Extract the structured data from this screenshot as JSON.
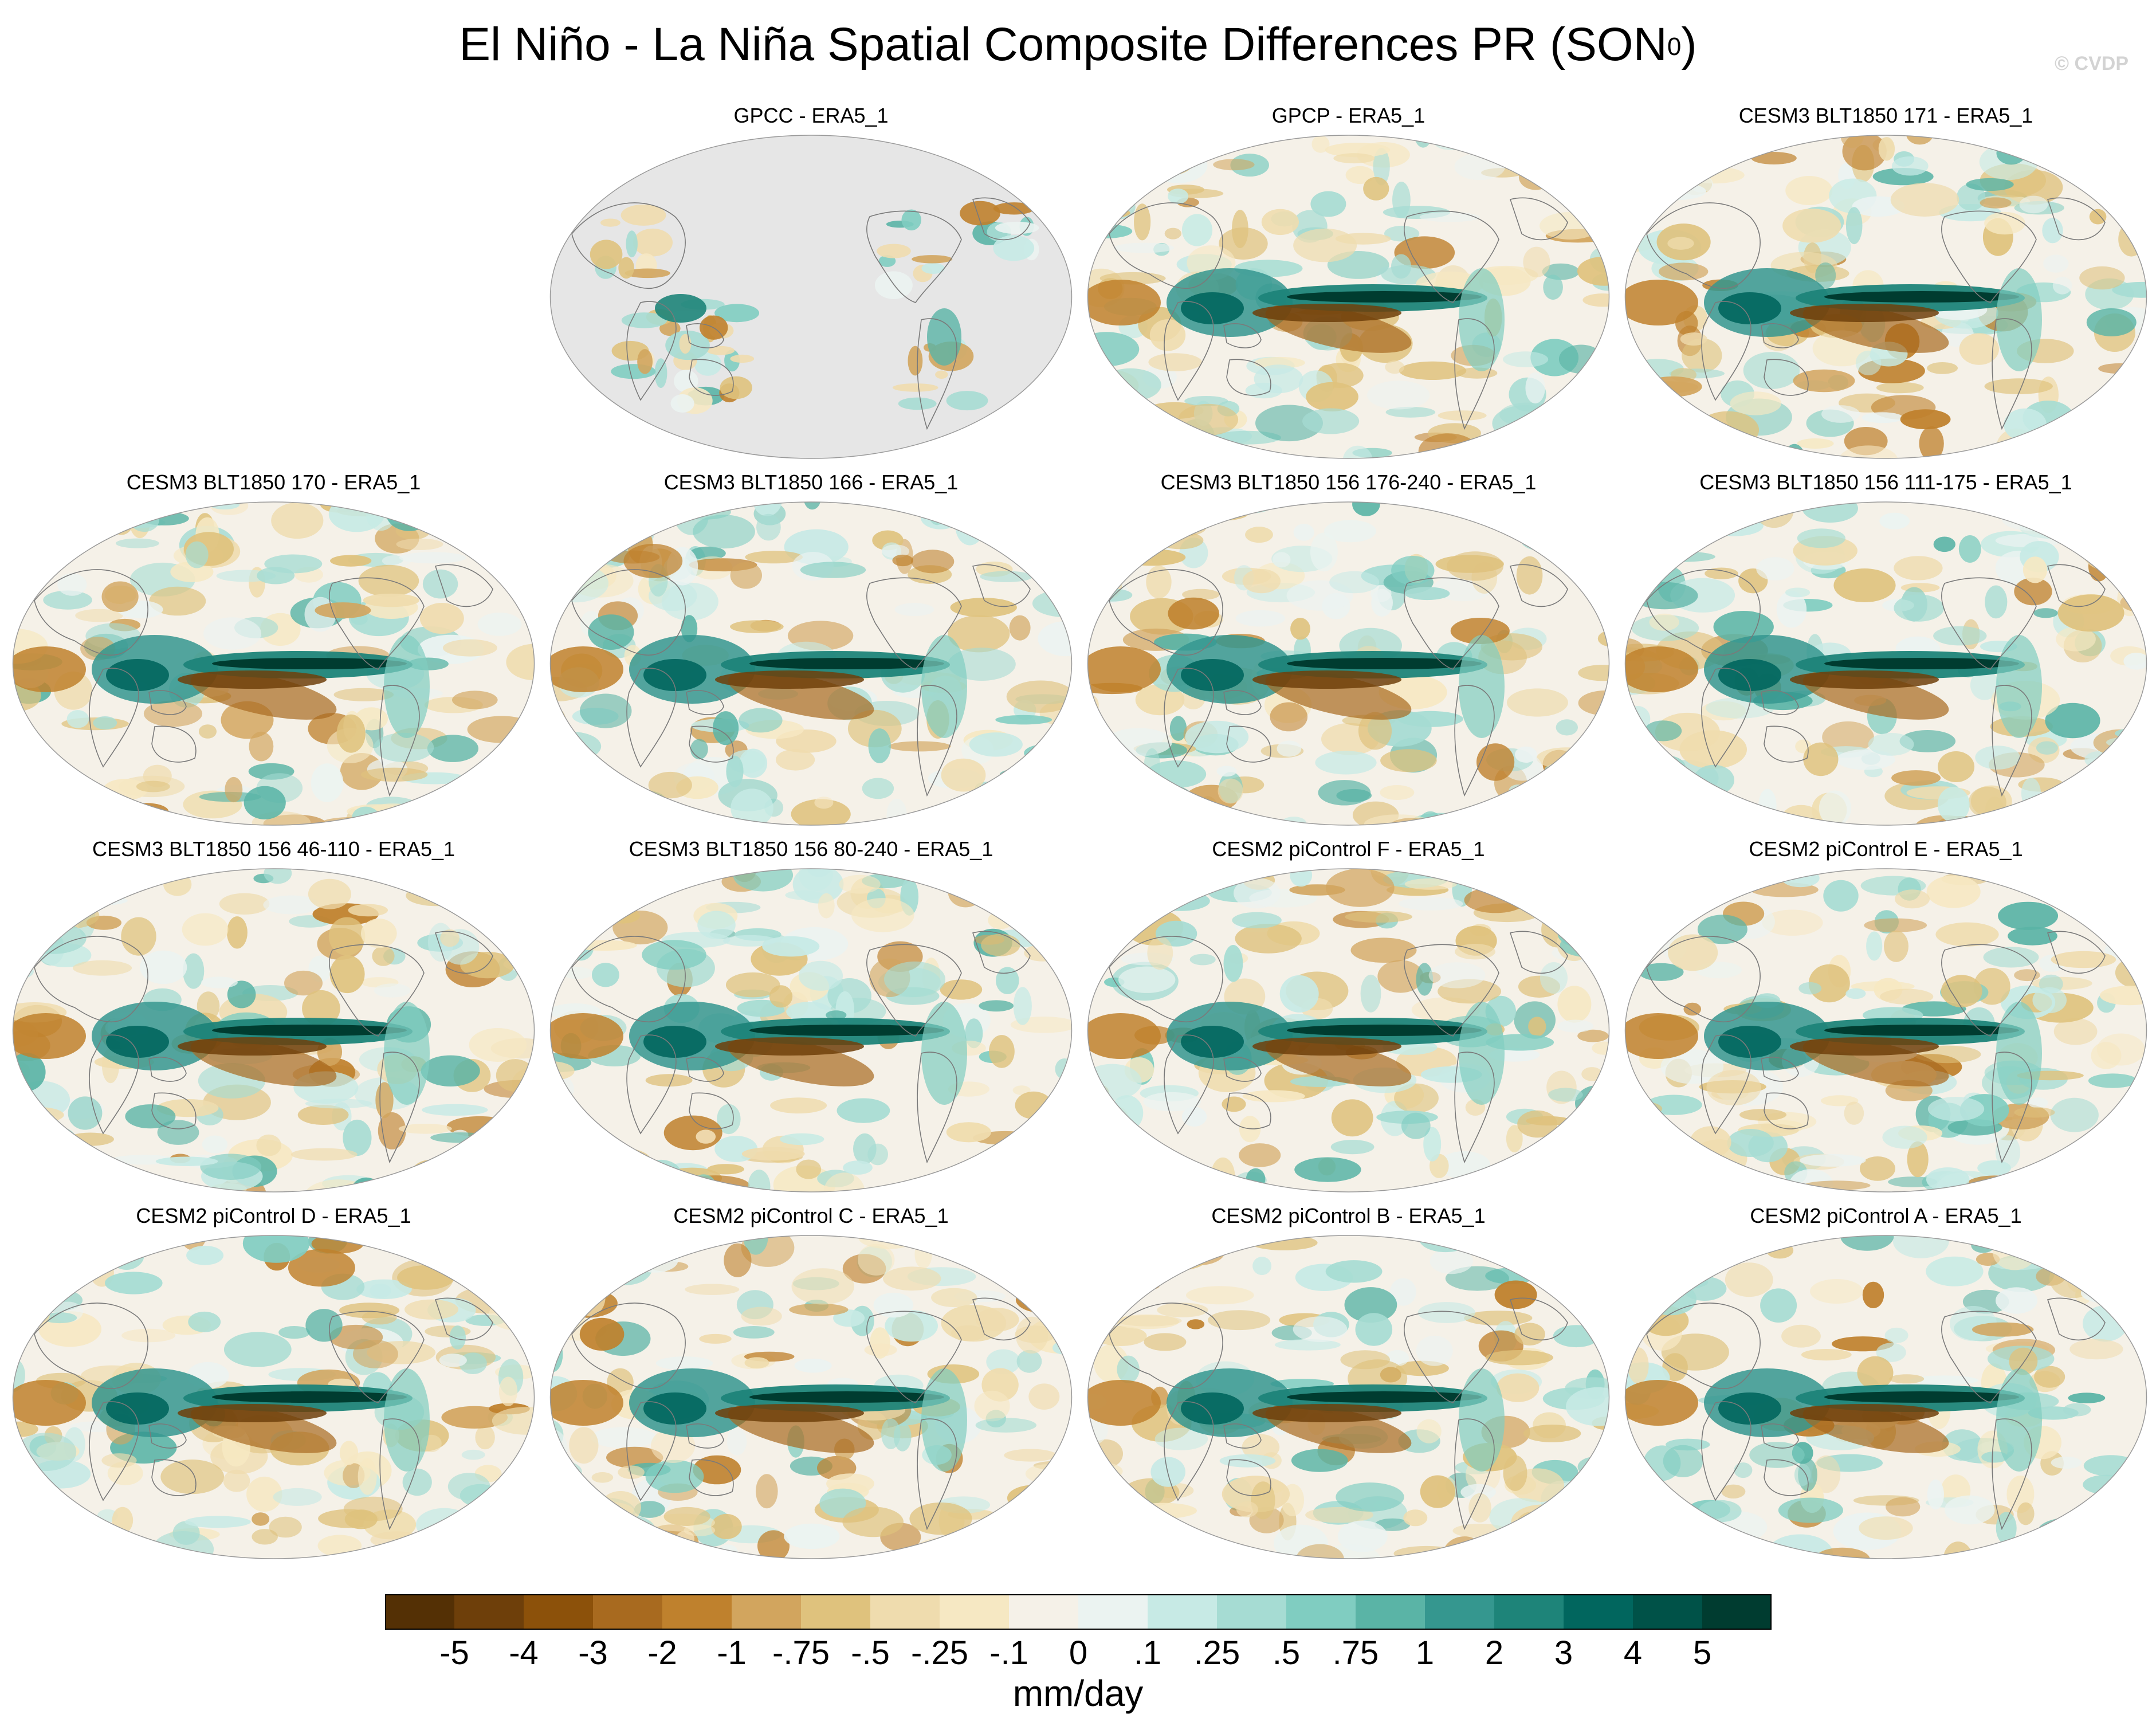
{
  "title_main": "El Niño - La Niña Spatial Composite Differences PR (SON",
  "title_sup": "0",
  "title_close": ")",
  "watermark": "© CVDP",
  "chart_data": {
    "type": "heatmap",
    "title": "El Niño - La Niña Spatial Composite Differences PR (SON0)",
    "units": "mm/day",
    "projection": "global map (Robinson-like, Pacific-centered)",
    "panels": [
      {
        "name": "GPCC - ERA5_1",
        "coverage": "land only",
        "row": 1,
        "col": 2
      },
      {
        "name": "GPCP - ERA5_1",
        "coverage": "global",
        "row": 1,
        "col": 3
      },
      {
        "name": "CESM3 BLT1850 171 - ERA5_1",
        "coverage": "global",
        "row": 1,
        "col": 4
      },
      {
        "name": "CESM3 BLT1850 170 - ERA5_1",
        "coverage": "global",
        "row": 2,
        "col": 1
      },
      {
        "name": "CESM3 BLT1850 166 - ERA5_1",
        "coverage": "global",
        "row": 2,
        "col": 2
      },
      {
        "name": "CESM3 BLT1850 156 176-240 - ERA5_1",
        "coverage": "global",
        "row": 2,
        "col": 3
      },
      {
        "name": "CESM3 BLT1850 156 111-175 - ERA5_1",
        "coverage": "global",
        "row": 2,
        "col": 4
      },
      {
        "name": "CESM3 BLT1850 156 46-110 - ERA5_1",
        "coverage": "global",
        "row": 3,
        "col": 1
      },
      {
        "name": "CESM3 BLT1850 156 80-240 - ERA5_1",
        "coverage": "global",
        "row": 3,
        "col": 2
      },
      {
        "name": "CESM2 piControl F - ERA5_1",
        "coverage": "global",
        "row": 3,
        "col": 3
      },
      {
        "name": "CESM2 piControl E - ERA5_1",
        "coverage": "global",
        "row": 3,
        "col": 4
      },
      {
        "name": "CESM2 piControl D - ERA5_1",
        "coverage": "global",
        "row": 4,
        "col": 1
      },
      {
        "name": "CESM2 piControl C - ERA5_1",
        "coverage": "global",
        "row": 4,
        "col": 2
      },
      {
        "name": "CESM2 piControl B - ERA5_1",
        "coverage": "global",
        "row": 4,
        "col": 3
      },
      {
        "name": "CESM2 piControl A - ERA5_1",
        "coverage": "global",
        "row": 4,
        "col": 4
      }
    ],
    "colorbar": {
      "labels": [
        "-5",
        "-4",
        "-3",
        "-2",
        "-1",
        "-.75",
        "-.5",
        "-.25",
        "-.1",
        "0",
        ".1",
        ".25",
        ".5",
        ".75",
        "1",
        "2",
        "3",
        "4",
        "5"
      ],
      "colors": [
        "#543005",
        "#6e3f0a",
        "#8c510a",
        "#a86a1f",
        "#bf812d",
        "#d2a55e",
        "#dfc27d",
        "#efdcae",
        "#f6e8c3",
        "#f5f1e8",
        "#ebf3f1",
        "#c7eae5",
        "#a6dcd3",
        "#80cdc1",
        "#5ab4a6",
        "#35978f",
        "#1e8479",
        "#01665e",
        "#005248",
        "#003c30"
      ]
    }
  }
}
